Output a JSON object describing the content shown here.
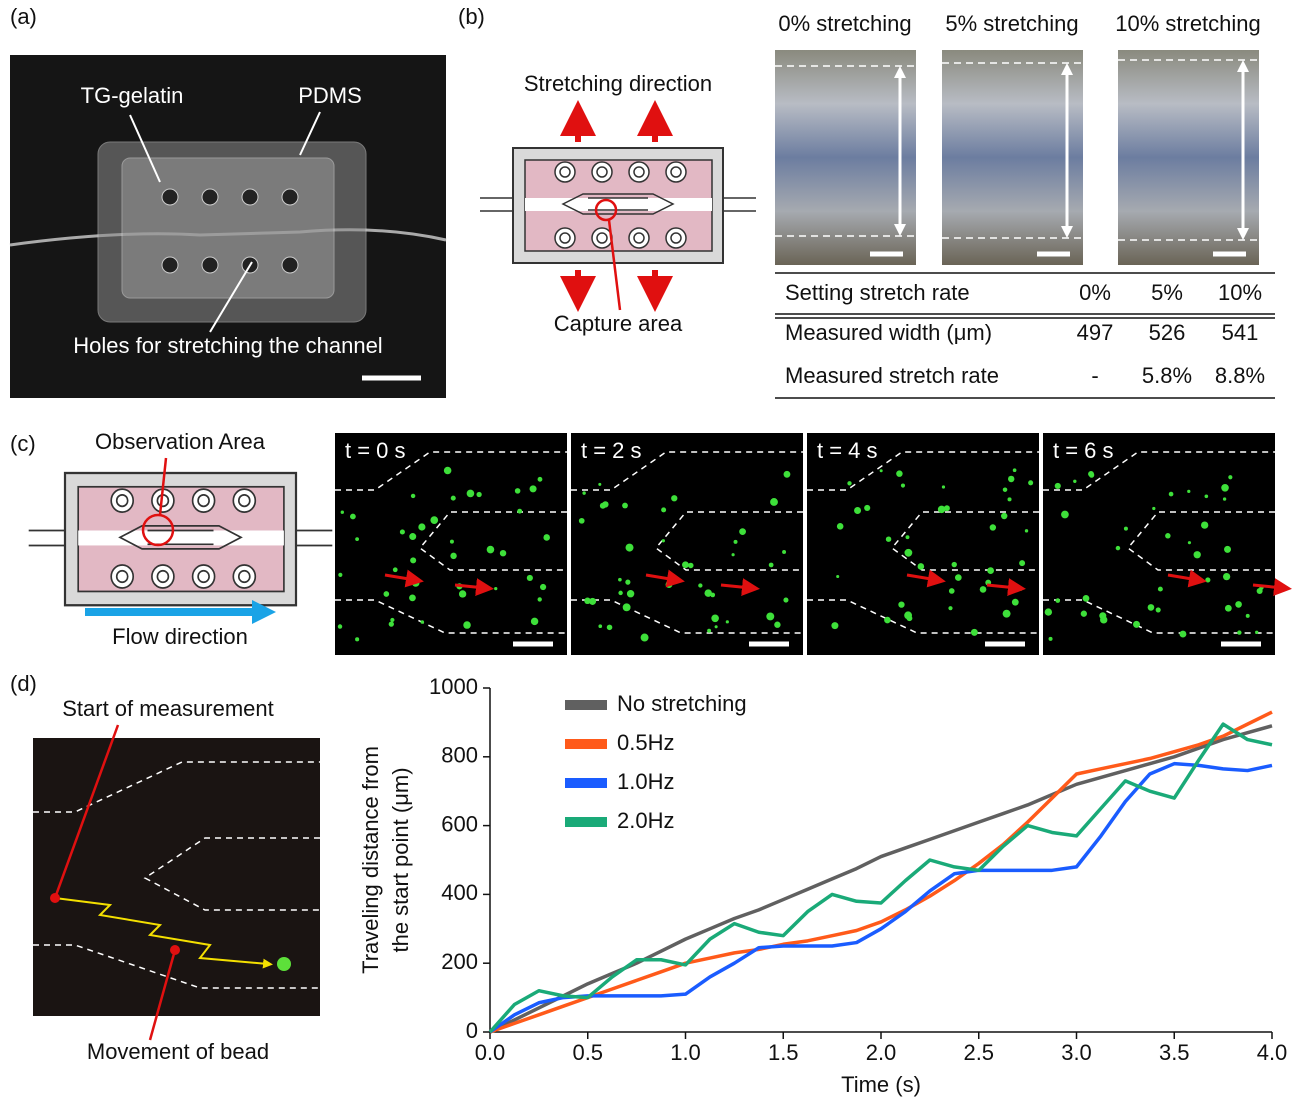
{
  "panels": {
    "a": {
      "label": "(a)",
      "annotations": [
        "TG-gelatin",
        "PDMS",
        "Holes for stretching the  channel"
      ]
    },
    "b": {
      "label": "(b)",
      "annotations": [
        "Stretching direction",
        "Capture area"
      ],
      "image_titles": [
        "0% stretching",
        "5% stretching",
        "10% stretching"
      ],
      "table": {
        "rows": [
          [
            "Setting stretch rate",
            "0%",
            "5%",
            "10%"
          ],
          [
            "Measured width (μm)",
            "497",
            "526",
            "541"
          ],
          [
            "Measured stretch rate",
            "-",
            "5.8%",
            "8.8%"
          ]
        ]
      }
    },
    "c": {
      "label": "(c)",
      "annotations": [
        "Observation Area",
        "Flow direction"
      ],
      "frame_titles": [
        "t = 0 s",
        "t = 2 s",
        "t = 4 s",
        "t = 6 s"
      ]
    },
    "d": {
      "label": "(d)",
      "annotations": [
        "Start of measurement",
        "Movement of bead"
      ]
    }
  },
  "chart_data": {
    "type": "line",
    "xlabel": "Time (s)",
    "ylabel": [
      "Traveling distance from",
      "the start point (μm)"
    ],
    "x": [
      0,
      0.125,
      0.25,
      0.375,
      0.5,
      0.625,
      0.75,
      0.875,
      1,
      1.125,
      1.25,
      1.375,
      1.5,
      1.625,
      1.75,
      1.875,
      2,
      2.125,
      2.25,
      2.375,
      2.5,
      2.625,
      2.75,
      2.875,
      3,
      3.125,
      3.25,
      3.375,
      3.5,
      3.625,
      3.75,
      3.875,
      4
    ],
    "series": [
      {
        "name": "No stretching",
        "color": "#606060",
        "values": [
          0,
          35,
          70,
          105,
          140,
          170,
          200,
          235,
          270,
          300,
          330,
          355,
          385,
          415,
          445,
          475,
          510,
          535,
          560,
          585,
          610,
          635,
          660,
          690,
          720,
          740,
          760,
          780,
          800,
          825,
          850,
          870,
          890
        ]
      },
      {
        "name": "0.5Hz",
        "color": "#ff5a1a",
        "values": [
          0,
          25,
          50,
          75,
          100,
          125,
          150,
          175,
          200,
          215,
          230,
          240,
          255,
          265,
          280,
          295,
          320,
          355,
          395,
          440,
          490,
          545,
          610,
          680,
          750,
          765,
          780,
          795,
          815,
          835,
          860,
          895,
          930
        ]
      },
      {
        "name": "1.0Hz",
        "color": "#1a5cff",
        "values": [
          0,
          50,
          85,
          100,
          105,
          105,
          105,
          105,
          110,
          160,
          200,
          245,
          250,
          250,
          250,
          260,
          300,
          350,
          410,
          460,
          470,
          470,
          470,
          470,
          480,
          570,
          670,
          750,
          780,
          775,
          765,
          760,
          775
        ]
      },
      {
        "name": "2.0Hz",
        "color": "#1aaa78",
        "values": [
          0,
          80,
          120,
          105,
          100,
          160,
          210,
          210,
          195,
          270,
          315,
          290,
          280,
          350,
          400,
          380,
          375,
          440,
          500,
          480,
          470,
          540,
          600,
          580,
          570,
          650,
          730,
          700,
          680,
          790,
          895,
          850,
          835
        ]
      }
    ],
    "xlim": [
      0,
      4
    ],
    "ylim": [
      0,
      1000
    ],
    "xticks": [
      {
        "value": 0,
        "label": "0.0"
      },
      {
        "value": 0.5,
        "label": "0.5"
      },
      {
        "value": 1,
        "label": "1.0"
      },
      {
        "value": 1.5,
        "label": "1.5"
      },
      {
        "value": 2,
        "label": "2.0"
      },
      {
        "value": 2.5,
        "label": "2.5"
      },
      {
        "value": 3,
        "label": "3.0"
      },
      {
        "value": 3.5,
        "label": "3.5"
      },
      {
        "value": 4,
        "label": "4.0"
      }
    ],
    "yticks": [
      0,
      200,
      400,
      600,
      800,
      1000
    ],
    "legend": "upper left",
    "grid": false
  }
}
